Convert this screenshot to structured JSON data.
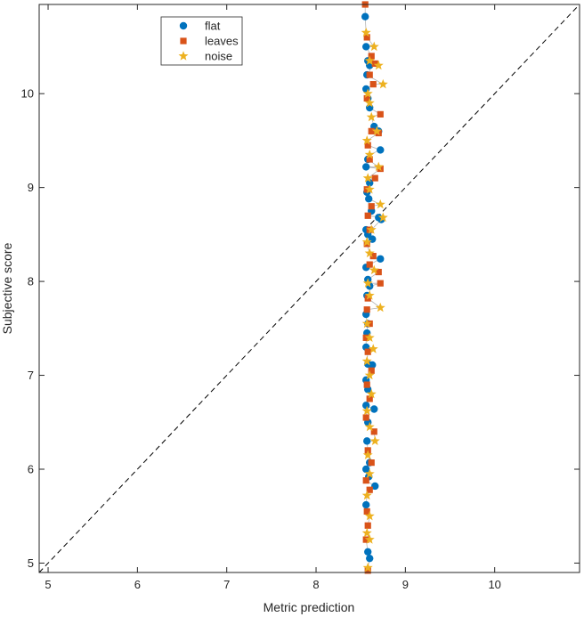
{
  "chart_data": {
    "type": "scatter",
    "title": "",
    "xlabel": "Metric prediction",
    "ylabel": "Subjective score",
    "xlim": [
      4.9,
      10.95
    ],
    "ylim": [
      4.9,
      10.95
    ],
    "xticks": [
      5,
      6,
      7,
      8,
      9,
      10
    ],
    "yticks": [
      5,
      6,
      7,
      8,
      9,
      10
    ],
    "grid": false,
    "legend_position": "top-left",
    "reference_line": {
      "style": "dashed",
      "from": [
        4.9,
        4.9
      ],
      "to": [
        10.95,
        10.95
      ]
    },
    "series": [
      {
        "name": "flat",
        "marker": "circle",
        "color": "#0072BD",
        "points": [
          [
            8.55,
            10.82
          ],
          [
            8.56,
            10.5
          ],
          [
            8.58,
            10.35
          ],
          [
            8.6,
            10.3
          ],
          [
            8.57,
            10.2
          ],
          [
            8.56,
            10.05
          ],
          [
            8.58,
            9.95
          ],
          [
            8.6,
            9.85
          ],
          [
            8.65,
            9.65
          ],
          [
            8.7,
            9.6
          ],
          [
            8.72,
            9.4
          ],
          [
            8.58,
            9.3
          ],
          [
            8.56,
            9.22
          ],
          [
            8.6,
            9.05
          ],
          [
            8.57,
            8.95
          ],
          [
            8.59,
            8.88
          ],
          [
            8.62,
            8.75
          ],
          [
            8.7,
            8.68
          ],
          [
            8.73,
            8.66
          ],
          [
            8.56,
            8.55
          ],
          [
            8.58,
            8.5
          ],
          [
            8.63,
            8.45
          ],
          [
            8.72,
            8.24
          ],
          [
            8.56,
            8.15
          ],
          [
            8.58,
            8.02
          ],
          [
            8.6,
            7.95
          ],
          [
            8.57,
            7.85
          ],
          [
            8.56,
            7.65
          ],
          [
            8.58,
            7.55
          ],
          [
            8.57,
            7.45
          ],
          [
            8.56,
            7.3
          ],
          [
            8.58,
            7.12
          ],
          [
            8.63,
            7.11
          ],
          [
            8.56,
            6.95
          ],
          [
            8.58,
            6.85
          ],
          [
            8.56,
            6.68
          ],
          [
            8.65,
            6.64
          ],
          [
            8.58,
            6.5
          ],
          [
            8.57,
            6.3
          ],
          [
            8.6,
            6.07
          ],
          [
            8.56,
            6.0
          ],
          [
            8.59,
            5.92
          ],
          [
            8.66,
            5.82
          ],
          [
            8.56,
            5.62
          ],
          [
            8.58,
            5.12
          ],
          [
            8.6,
            5.05
          ]
        ]
      },
      {
        "name": "leaves",
        "marker": "square",
        "color": "#D95319",
        "points": [
          [
            8.55,
            10.95
          ],
          [
            8.57,
            10.6
          ],
          [
            8.62,
            10.4
          ],
          [
            8.66,
            10.32
          ],
          [
            8.6,
            10.2
          ],
          [
            8.64,
            10.1
          ],
          [
            8.57,
            9.95
          ],
          [
            8.72,
            9.78
          ],
          [
            8.62,
            9.6
          ],
          [
            8.7,
            9.58
          ],
          [
            8.58,
            9.45
          ],
          [
            8.6,
            9.3
          ],
          [
            8.72,
            9.2
          ],
          [
            8.66,
            9.1
          ],
          [
            8.57,
            8.98
          ],
          [
            8.62,
            8.8
          ],
          [
            8.58,
            8.7
          ],
          [
            8.6,
            8.55
          ],
          [
            8.57,
            8.4
          ],
          [
            8.64,
            8.27
          ],
          [
            8.6,
            8.18
          ],
          [
            8.7,
            8.1
          ],
          [
            8.72,
            7.98
          ],
          [
            8.58,
            7.82
          ],
          [
            8.57,
            7.7
          ],
          [
            8.6,
            7.55
          ],
          [
            8.56,
            7.4
          ],
          [
            8.58,
            7.25
          ],
          [
            8.62,
            7.05
          ],
          [
            8.57,
            6.9
          ],
          [
            8.6,
            6.75
          ],
          [
            8.56,
            6.55
          ],
          [
            8.65,
            6.4
          ],
          [
            8.58,
            6.2
          ],
          [
            8.62,
            6.07
          ],
          [
            8.56,
            5.88
          ],
          [
            8.6,
            5.78
          ],
          [
            8.57,
            5.55
          ],
          [
            8.58,
            5.4
          ],
          [
            8.56,
            5.25
          ],
          [
            8.58,
            4.92
          ]
        ]
      },
      {
        "name": "noise",
        "marker": "star",
        "color": "#EDB120",
        "points": [
          [
            8.56,
            10.65
          ],
          [
            8.65,
            10.5
          ],
          [
            8.6,
            10.35
          ],
          [
            8.7,
            10.3
          ],
          [
            8.75,
            10.1
          ],
          [
            8.58,
            10.0
          ],
          [
            8.6,
            9.9
          ],
          [
            8.62,
            9.75
          ],
          [
            8.68,
            9.6
          ],
          [
            8.57,
            9.5
          ],
          [
            8.6,
            9.35
          ],
          [
            8.7,
            9.22
          ],
          [
            8.58,
            9.1
          ],
          [
            8.6,
            8.98
          ],
          [
            8.72,
            8.82
          ],
          [
            8.75,
            8.68
          ],
          [
            8.62,
            8.55
          ],
          [
            8.57,
            8.42
          ],
          [
            8.6,
            8.3
          ],
          [
            8.65,
            8.12
          ],
          [
            8.58,
            7.98
          ],
          [
            8.6,
            7.85
          ],
          [
            8.72,
            7.72
          ],
          [
            8.57,
            7.55
          ],
          [
            8.6,
            7.4
          ],
          [
            8.64,
            7.28
          ],
          [
            8.57,
            7.15
          ],
          [
            8.6,
            7.0
          ],
          [
            8.62,
            6.8
          ],
          [
            8.57,
            6.62
          ],
          [
            8.6,
            6.45
          ],
          [
            8.66,
            6.3
          ],
          [
            8.58,
            6.15
          ],
          [
            8.6,
            5.95
          ],
          [
            8.57,
            5.72
          ],
          [
            8.6,
            5.5
          ],
          [
            8.57,
            5.32
          ],
          [
            8.6,
            5.25
          ],
          [
            8.58,
            4.95
          ]
        ]
      }
    ]
  }
}
